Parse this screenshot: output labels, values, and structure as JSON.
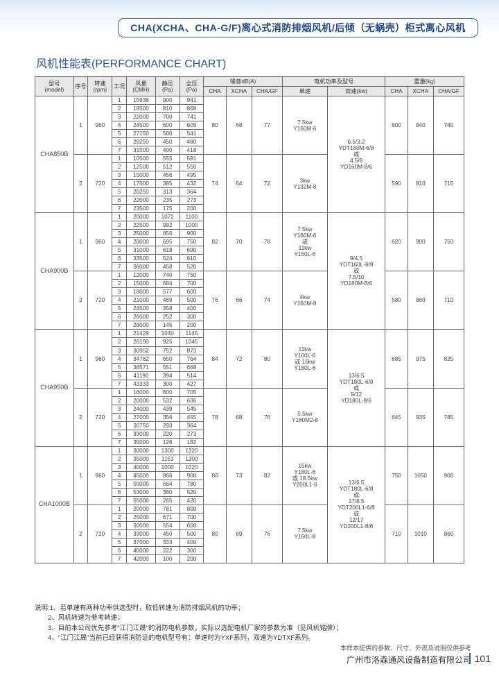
{
  "header_title": "CHA(XCHA、CHA-G/F)离心式消防排烟风机/后倾（无蜗壳）柜式离心风机",
  "section_title": "风机性能表(PERFORMANCE CHART)",
  "colors": {
    "border_blue": "#2d5fa4",
    "title_blue": "#2a5a99",
    "header_bg": "#e8e8e8",
    "cell_border": "#666666"
  },
  "headers": {
    "model": "型号\n(model)",
    "seq": "序号",
    "rpm": "转速\n(rpm)",
    "cond": "工况",
    "cmh": "风量\n(CMH)",
    "sp": "静压\n(Pa)",
    "tp": "全压\n(Pa)",
    "noise_group": "噪音dB(A)",
    "noise_cha": "CHA",
    "noise_xcha": "XCHA",
    "noise_chagf": "CHA/GF",
    "motor_group": "电机功率及型号",
    "motor_single": "单速",
    "motor_dual": "双速(kw)",
    "weight_group": "重量(kg)",
    "weight_cha": "CHA",
    "weight_xcha": "XCHA",
    "weight_chagf": "CHA/GF"
  },
  "blocks": [
    {
      "model": "CHA850B",
      "dual_motor": "6.5/3.2\nYDT160M-6/8\n或\n4.5/6\nYD160M-8/6",
      "groups": [
        {
          "seq": 1,
          "rpm": 960,
          "rows": [
            {
              "c": 1,
              "cmh": 15938,
              "sp": 900,
              "tp": 941
            },
            {
              "c": 2,
              "cmh": 18500,
              "sp": 810,
              "tp": 868
            },
            {
              "c": 3,
              "cmh": 22000,
              "sp": 700,
              "tp": 741
            },
            {
              "c": 4,
              "cmh": 24500,
              "sp": 600,
              "tp": 609
            },
            {
              "c": 5,
              "cmh": 27150,
              "sp": 500,
              "tp": 541
            },
            {
              "c": 6,
              "cmh": 29250,
              "sp": 450,
              "tp": 480
            },
            {
              "c": 7,
              "cmh": 31500,
              "sp": 400,
              "tp": 418
            }
          ],
          "noise": {
            "cha": 80,
            "xcha": 68,
            "chagf": 77
          },
          "single": "7.5kw\nY160M-6",
          "weight": {
            "cha": 600,
            "xcha": 840,
            "chagf": 745
          }
        },
        {
          "seq": 2,
          "rpm": 720,
          "rows": [
            {
              "c": 1,
              "cmh": 10500,
              "sp": 555,
              "tp": 591
            },
            {
              "c": 2,
              "cmh": 12500,
              "sp": 512,
              "tp": 550
            },
            {
              "c": 3,
              "cmh": 15000,
              "sp": 456,
              "tp": 495
            },
            {
              "c": 4,
              "cmh": 17500,
              "sp": 385,
              "tp": 432
            },
            {
              "c": 5,
              "cmh": 20250,
              "sp": 313,
              "tp": 364
            },
            {
              "c": 6,
              "cmh": 22000,
              "sp": 235,
              "tp": 273
            },
            {
              "c": 7,
              "cmh": 23500,
              "sp": 175,
              "tp": 200
            }
          ],
          "noise": {
            "cha": 74,
            "xcha": 64,
            "chagf": 72
          },
          "single": "3kw\nY132M-8",
          "weight": {
            "cha": 590,
            "xcha": 810,
            "chagf": 715
          }
        }
      ]
    },
    {
      "model": "CHA900B",
      "dual_motor": "9/4.5\nYDT160L-6/8\n或\n7.5/10\nYD180M-8/6",
      "groups": [
        {
          "seq": 1,
          "rpm": 960,
          "rows": [
            {
              "c": 1,
              "cmh": 20000,
              "sp": 1072,
              "tp": 1100
            },
            {
              "c": 2,
              "cmh": 22500,
              "sp": 992,
              "tp": 1000
            },
            {
              "c": 3,
              "cmh": 25000,
              "sp": 856,
              "tp": 900
            },
            {
              "c": 4,
              "cmh": 28000,
              "sp": 695,
              "tp": 750
            },
            {
              "c": 5,
              "cmh": 31000,
              "sp": 618,
              "tp": 690
            },
            {
              "c": 6,
              "cmh": 33500,
              "sp": 524,
              "tp": 610
            },
            {
              "c": 7,
              "cmh": 36000,
              "sp": 458,
              "tp": 520
            }
          ],
          "noise": {
            "cha": 82,
            "xcha": 70,
            "chagf": 78
          },
          "single": "7.5kw\nY160M-6\n或\n11kw\nY160L-6",
          "weight": {
            "cha": 620,
            "xcha": 900,
            "chagf": 750
          }
        },
        {
          "seq": 2,
          "rpm": 720,
          "rows": [
            {
              "c": 1,
              "cmh": 12000,
              "sp": 740,
              "tp": 750
            },
            {
              "c": 2,
              "cmh": 15000,
              "sp": 684,
              "tp": 700
            },
            {
              "c": 3,
              "cmh": 18000,
              "sp": 577,
              "tp": 600
            },
            {
              "c": 4,
              "cmh": 21000,
              "sp": 469,
              "tp": 500
            },
            {
              "c": 5,
              "cmh": 24500,
              "sp": 358,
              "tp": 400
            },
            {
              "c": 6,
              "cmh": 26000,
              "sp": 252,
              "tp": 300
            },
            {
              "c": 7,
              "cmh": 28000,
              "sp": 145,
              "tp": 200
            }
          ],
          "noise": {
            "cha": 76,
            "xcha": 66,
            "chagf": 74
          },
          "single": "4kw\nY160M-8",
          "weight": {
            "cha": 580,
            "xcha": 860,
            "chagf": 710
          }
        }
      ]
    },
    {
      "model": "CHA950B",
      "dual_motor": "13/6.5\nYDT180L-6/8\n或\n9/12\nYD180L-8/6",
      "groups": [
        {
          "seq": 1,
          "rpm": 960,
          "rows": [
            {
              "c": 1,
              "cmh": 21429,
              "sp": 1040,
              "tp": 1145
            },
            {
              "c": 2,
              "cmh": 26190,
              "sp": 925,
              "tp": 1045
            },
            {
              "c": 3,
              "cmh": 30952,
              "sp": 752,
              "tp": 873
            },
            {
              "c": 4,
              "cmh": 34762,
              "sp": 650,
              "tp": 764
            },
            {
              "c": 5,
              "cmh": 38571,
              "sp": 551,
              "tp": 668
            },
            {
              "c": 6,
              "cmh": 41190,
              "sp": 394,
              "tp": 514
            },
            {
              "c": 7,
              "cmh": 43333,
              "sp": 300,
              "tp": 427
            }
          ],
          "noise": {
            "cha": 84,
            "xcha": 72,
            "chagf": 80
          },
          "single": "11kw\nY160L-6\n或   15kw\nY180L-6",
          "weight": {
            "cha": 685,
            "xcha": 975,
            "chagf": 825
          }
        },
        {
          "seq": 2,
          "rpm": 720,
          "rows": [
            {
              "c": 1,
              "cmh": 16000,
              "sp": 600,
              "tp": 705
            },
            {
              "c": 2,
              "cmh": 20000,
              "sp": 532,
              "tp": 636
            },
            {
              "c": 3,
              "cmh": 24000,
              "sp": 439,
              "tp": 545
            },
            {
              "c": 4,
              "cmh": 27000,
              "sp": 356,
              "tp": 455
            },
            {
              "c": 5,
              "cmh": 30750,
              "sp": 293,
              "tp": 364
            },
            {
              "c": 6,
              "cmh": 33000,
              "sp": 220,
              "tp": 273
            },
            {
              "c": 7,
              "cmh": 35000,
              "sp": 126,
              "tp": 182
            }
          ],
          "noise": {
            "cha": 78,
            "xcha": 68,
            "chagf": 76
          },
          "single": "5.5kw\nY160M2-8",
          "weight": {
            "cha": 645,
            "xcha": 935,
            "chagf": 785
          }
        }
      ]
    },
    {
      "model": "CHA1000B",
      "dual_motor": "13/6.5\nYDT180L-6/8\n或\n17/8.5\nYDT200L1-6/8\n或\n12/17\nYD200L1-8/6",
      "groups": [
        {
          "seq": 1,
          "rpm": 960,
          "rows": [
            {
              "c": 1,
              "cmh": 30000,
              "sp": 1300,
              "tp": 1320
            },
            {
              "c": 2,
              "cmh": 35000,
              "sp": 1153,
              "tp": 1200
            },
            {
              "c": 3,
              "cmh": 40000,
              "sp": 1000,
              "tp": 1020
            },
            {
              "c": 4,
              "cmh": 45000,
              "sp": 866,
              "tp": 900
            },
            {
              "c": 5,
              "cmh": 50000,
              "sp": 664,
              "tp": 780
            },
            {
              "c": 6,
              "cmh": 53000,
              "sp": 380,
              "tp": 520
            },
            {
              "c": 7,
              "cmh": 55000,
              "sp": 265,
              "tp": 420
            }
          ],
          "noise": {
            "cha": 86,
            "xcha": 73,
            "chagf": 82
          },
          "single": "15kw\nY180L-6\n或 18.5kw\nY200L1-6",
          "weight": {
            "cha": 750,
            "xcha": 1050,
            "chagf": 900
          }
        },
        {
          "seq": 2,
          "rpm": 720,
          "rows": [
            {
              "c": 1,
              "cmh": 20000,
              "sp": 781,
              "tp": 800
            },
            {
              "c": 2,
              "cmh": 25000,
              "sp": 671,
              "tp": 700
            },
            {
              "c": 3,
              "cmh": 30000,
              "sp": 554,
              "tp": 600
            },
            {
              "c": 4,
              "cmh": 33000,
              "sp": 450,
              "tp": 500
            },
            {
              "c": 5,
              "cmh": 37000,
              "sp": 333,
              "tp": 400
            },
            {
              "c": 6,
              "cmh": 40000,
              "sp": 222,
              "tp": 300
            },
            {
              "c": 7,
              "cmh": 42000,
              "sp": 100,
              "tp": 200
            }
          ],
          "noise": {
            "cha": 80,
            "xcha": 69,
            "chagf": 76
          },
          "single": "7.5kw\nY160L-8",
          "weight": {
            "cha": 710,
            "xcha": 1010,
            "chagf": 860
          }
        }
      ]
    }
  ],
  "notes_label": "说明:",
  "notes": [
    "1、若单速有两种功率供选型时，取低转速为消防排烟风机的功率；",
    "2、风机转速为参考转速；",
    "3、目前本公司优先参考\"江门江晟\"的消防电机参数，实际以选配电机厂家的参数为准（见风机铭牌）；",
    "4、\"江门江晟\"当前已经获得消防证的电机型号有：单速时为YXF系列，双速为YDTXF系列。"
  ],
  "footer_note": "本样本提供的参数、尺寸、外观及说明仅供参考",
  "company": "广州市洛森通风设备制造有限公司",
  "page_number": "101"
}
